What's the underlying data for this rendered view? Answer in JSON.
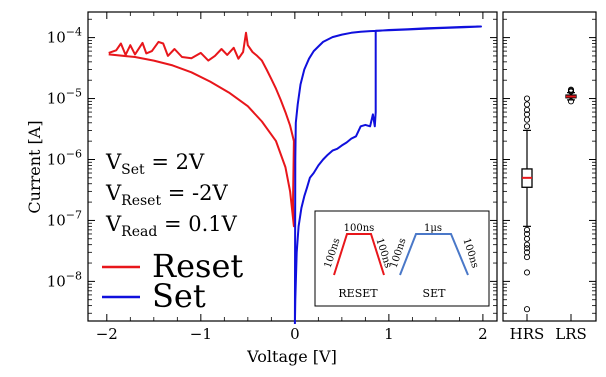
{
  "chart_data": {
    "type": "line",
    "xlabel": "Voltage [V]",
    "ylabel": "Current [A]",
    "xlim": [
      -2.2,
      2.15
    ],
    "ylim_log10": [
      -8.65,
      -3.58
    ],
    "yscale": "log",
    "x_ticks": [
      -2,
      -1,
      0,
      1,
      2
    ],
    "x_tick_labels": [
      "−2",
      "−1",
      "0",
      "1",
      "2"
    ],
    "y_ticks_exp": [
      -4,
      -5,
      -6,
      -7,
      -8
    ],
    "y_tick_base": "10",
    "y_tick_exponents": [
      "−4",
      "−5",
      "−6",
      "−7",
      "−8"
    ],
    "legend": {
      "placement": "lower-left",
      "entries": [
        {
          "name": "Reset",
          "color": "#e8161b"
        },
        {
          "name": "Set",
          "color": "#1010dd"
        }
      ]
    },
    "annotations": {
      "v_set": {
        "main": "V",
        "sub": "Set",
        "value": " = 2V"
      },
      "v_reset": {
        "main": "V",
        "sub": "Reset",
        "value": " = -2V"
      },
      "v_read": {
        "main": "V",
        "sub": "Read",
        "value": " = 0.1V"
      }
    },
    "series": [
      {
        "name": "Reset",
        "color": "#e8161b",
        "points": [
          [
            -1.98,
            5.6e-05
          ],
          [
            -1.9,
            6.2e-05
          ],
          [
            -1.85,
            8e-05
          ],
          [
            -1.8,
            5.2e-05
          ],
          [
            -1.75,
            7.5e-05
          ],
          [
            -1.7,
            5.3e-05
          ],
          [
            -1.62,
            8.2e-05
          ],
          [
            -1.58,
            5.5e-05
          ],
          [
            -1.52,
            6e-05
          ],
          [
            -1.45,
            8.5e-05
          ],
          [
            -1.4,
            8e-05
          ],
          [
            -1.35,
            5e-05
          ],
          [
            -1.28,
            6.5e-05
          ],
          [
            -1.2,
            4.8e-05
          ],
          [
            -1.1,
            4.6e-05
          ],
          [
            -1.0,
            5.6e-05
          ],
          [
            -0.92,
            4.2e-05
          ],
          [
            -0.85,
            5e-05
          ],
          [
            -0.78,
            6.5e-05
          ],
          [
            -0.72,
            5.2e-05
          ],
          [
            -0.65,
            6.8e-05
          ],
          [
            -0.6,
            4.5e-05
          ],
          [
            -0.55,
            5.8e-05
          ],
          [
            -0.52,
            0.00012
          ],
          [
            -0.5,
            7.5e-05
          ],
          [
            -0.45,
            5.8e-05
          ],
          [
            -0.4,
            5e-05
          ],
          [
            -0.35,
            4.2e-05
          ],
          [
            -0.3,
            3e-05
          ],
          [
            -0.25,
            2.1e-05
          ],
          [
            -0.2,
            1.45e-05
          ],
          [
            -0.15,
            9.5e-06
          ],
          [
            -0.1,
            6e-06
          ],
          [
            -0.05,
            3.6e-06
          ],
          [
            -0.02,
            2.3e-06
          ],
          [
            -0.01,
            2e-06
          ],
          [
            -0.02,
            2e-07
          ],
          [
            -0.01,
            8e-08
          ],
          [
            -0.05,
            3e-07
          ],
          [
            -0.1,
            7.5e-07
          ],
          [
            -0.2,
            2e-06
          ],
          [
            -0.35,
            4.2e-06
          ],
          [
            -0.5,
            7.5e-06
          ],
          [
            -0.7,
            1.25e-05
          ],
          [
            -0.9,
            1.9e-05
          ],
          [
            -1.1,
            2.7e-05
          ],
          [
            -1.3,
            3.5e-05
          ],
          [
            -1.5,
            4.2e-05
          ],
          [
            -1.7,
            4.8e-05
          ],
          [
            -1.98,
            5.3e-05
          ]
        ]
      },
      {
        "name": "Set",
        "color": "#1010dd",
        "points": [
          [
            0.0,
            2e-09
          ],
          [
            0.005,
            1e-06
          ],
          [
            0.01,
            4e-06
          ],
          [
            0.03,
            8e-06
          ],
          [
            0.06,
            1.7e-05
          ],
          [
            0.1,
            3e-05
          ],
          [
            0.15,
            4.5e-05
          ],
          [
            0.2,
            6e-05
          ],
          [
            0.3,
            8.5e-05
          ],
          [
            0.4,
            0.000102
          ],
          [
            0.5,
            0.000112
          ],
          [
            0.6,
            0.00012
          ],
          [
            0.7,
            0.000125
          ],
          [
            0.8,
            0.000128
          ],
          [
            0.9,
            0.00013
          ],
          [
            1.0,
            0.000133
          ],
          [
            1.2,
            0.000137
          ],
          [
            1.4,
            0.000142
          ],
          [
            1.6,
            0.000146
          ],
          [
            1.8,
            0.00015
          ],
          [
            1.98,
            0.000152
          ],
          [
            1.8,
            0.000148
          ],
          [
            1.5,
            0.000142
          ],
          [
            1.2,
            0.000136
          ],
          [
            1.0,
            0.000132
          ],
          [
            0.86,
            0.00013
          ],
          [
            0.86,
            6e-06
          ],
          [
            0.85,
            3.5e-06
          ],
          [
            0.83,
            5.5e-06
          ],
          [
            0.8,
            3.5e-06
          ],
          [
            0.75,
            3.7e-06
          ],
          [
            0.7,
            3.5e-06
          ],
          [
            0.65,
            2.4e-06
          ],
          [
            0.6,
            2.2e-06
          ],
          [
            0.55,
            1.9e-06
          ],
          [
            0.5,
            1.7e-06
          ],
          [
            0.45,
            1.5e-06
          ],
          [
            0.4,
            1.4e-06
          ],
          [
            0.35,
            1.2e-06
          ],
          [
            0.3,
            1e-06
          ],
          [
            0.25,
            8e-07
          ],
          [
            0.2,
            6e-07
          ],
          [
            0.16,
            5e-07
          ],
          [
            0.13,
            3.5e-07
          ],
          [
            0.1,
            2.5e-07
          ],
          [
            0.07,
            1.6e-07
          ],
          [
            0.04,
            8e-08
          ],
          [
            0.02,
            3e-08
          ],
          [
            0.005,
            5e-09
          ],
          [
            0.0,
            2e-09
          ]
        ]
      }
    ],
    "boxplot": {
      "categories": [
        "HRS",
        "LRS"
      ],
      "box_color": "#000000",
      "median_color": "#e8161b",
      "HRS": {
        "whisker_low": 8e-08,
        "q1": 3.5e-07,
        "median": 5e-07,
        "q3": 7e-07,
        "whisker_high": 3e-06,
        "outliers": [
          3.5e-09,
          1.4e-08,
          2.5e-08,
          3e-08,
          3.5e-08,
          4e-08,
          5e-08,
          6e-08,
          7e-08,
          3.5e-06,
          4.5e-06,
          5.5e-06,
          6.5e-06,
          8e-06,
          1e-05
        ]
      },
      "LRS": {
        "whisker_low": 9.5e-06,
        "q1": 1.03e-05,
        "median": 1.08e-05,
        "q3": 1.14e-05,
        "whisker_high": 1.25e-05,
        "outliers": [
          9e-06,
          1.3e-05,
          1.35e-05,
          1.4e-05
        ]
      }
    },
    "inset": {
      "reset": {
        "label": "RESET",
        "top": "100ns",
        "rise": "100ns",
        "fall": "100ns",
        "color": "#e8161b"
      },
      "set": {
        "label": "SET",
        "top": "1μs",
        "rise": "100ns",
        "fall": "100ns",
        "color": "#4a78c8"
      }
    }
  }
}
